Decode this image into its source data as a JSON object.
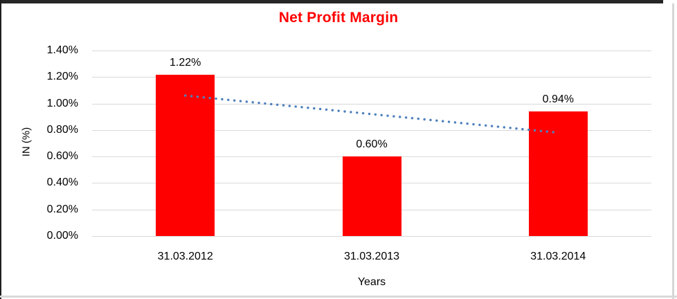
{
  "chart_data": {
    "type": "bar",
    "title": "Net Profit Margin",
    "title_color": "#FF0000",
    "categories": [
      "31.03.2012",
      "31.03.2013",
      "31.03.2014"
    ],
    "values": [
      1.22,
      0.6,
      0.94
    ],
    "value_labels": [
      "1.22%",
      "0.60%",
      "0.94%"
    ],
    "bar_color": "#FF0000",
    "xlabel": "Years",
    "ylabel": "IN (%)",
    "ylim": [
      0,
      1.4
    ],
    "ytick_step": 0.2,
    "ytick_labels": [
      "0.00%",
      "0.20%",
      "0.40%",
      "0.60%",
      "0.80%",
      "1.00%",
      "1.20%",
      "1.40%"
    ],
    "grid": true,
    "gridline_color": "#D9D9D9",
    "legend": "none",
    "trendline": {
      "type": "linear",
      "style": "dotted",
      "color": "#4F81BD",
      "start": {
        "category": "31.03.2012",
        "value": 1.06
      },
      "end": {
        "category": "31.03.2014",
        "value": 0.78
      }
    }
  }
}
